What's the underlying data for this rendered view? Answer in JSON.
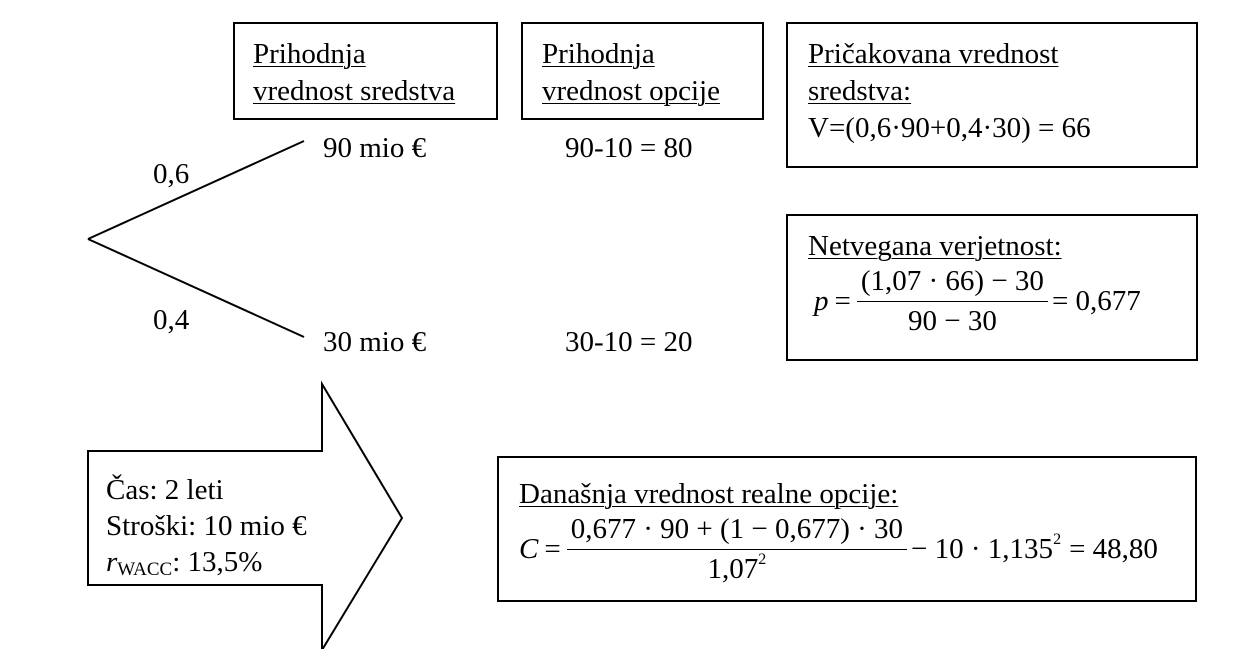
{
  "header_boxes": {
    "asset": [
      "Prihodnja",
      "vrednost sredstva"
    ],
    "option": [
      "Prihodnja",
      "vrednost opcije"
    ],
    "expected": {
      "title_lines": [
        "Pričakovana vrednost",
        "sredstva:"
      ],
      "formula": "V=(0,6·90+0,4·30) = 66"
    }
  },
  "tree": {
    "prob_up": "0,6",
    "prob_down": "0,4",
    "asset_up": "90 mio €",
    "asset_down": "30 mio €",
    "option_up": "90-10 = 80",
    "option_down": "30-10 = 20"
  },
  "risk_neutral": {
    "title": "Netvegana verjetnost:",
    "lhs": "p",
    "numerator": "(1,07 · 66) − 30",
    "denominator": "90 − 30",
    "result": "= 0,677"
  },
  "arrow_box": {
    "time": "Čas: 2 leti",
    "costs": "Stroški: 10 mio €",
    "wacc_r": "r",
    "wacc_sub": "WACC",
    "wacc_value": ": 13,5%"
  },
  "present_value": {
    "title": "Današnja vrednost realne opcije:",
    "lhs": "C",
    "numerator": "0,677 · 90 + (1 − 0,677) · 30",
    "denominator_base": "1,07",
    "denominator_exp": "2",
    "tail_base": "− 10 · 1,135",
    "tail_exp": "2",
    "result": "= 48,80"
  }
}
